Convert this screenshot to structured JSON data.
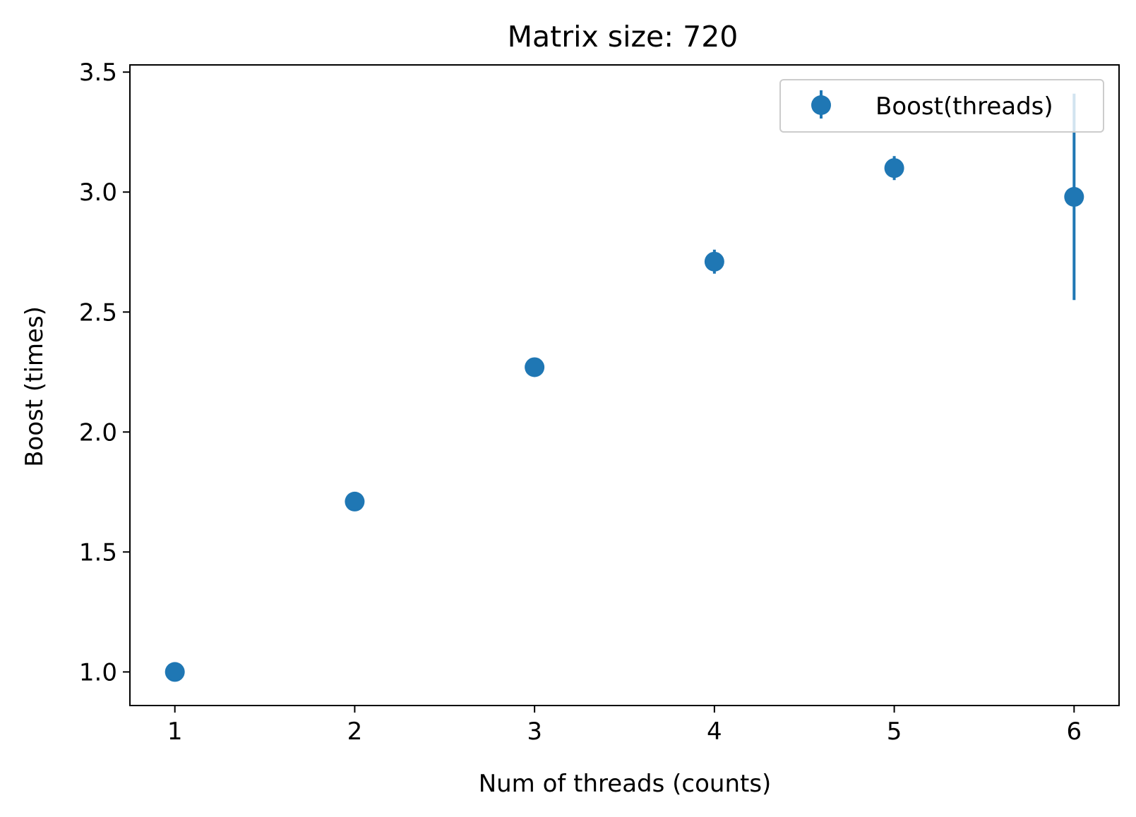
{
  "chart_data": {
    "type": "scatter",
    "title": "Matrix size: 720",
    "xlabel": "Num of threads (counts)",
    "ylabel": "Boost (times)",
    "xlim": [
      0.75,
      6.25
    ],
    "ylim": [
      0.86,
      3.53
    ],
    "xticks": [
      1,
      2,
      3,
      4,
      5,
      6
    ],
    "xtick_labels": [
      "1",
      "2",
      "3",
      "4",
      "5",
      "6"
    ],
    "yticks": [
      1.0,
      1.5,
      2.0,
      2.5,
      3.0,
      3.5
    ],
    "ytick_labels": [
      "1.0",
      "1.5",
      "2.0",
      "2.5",
      "3.0",
      "3.5"
    ],
    "grid": false,
    "legend_position": "top-right",
    "series": [
      {
        "name": "Boost(threads)",
        "color": "#1f77b4",
        "x": [
          1,
          2,
          3,
          4,
          5,
          6
        ],
        "y": [
          1.0,
          1.71,
          2.27,
          2.71,
          3.1,
          2.98
        ],
        "yerr": [
          0.0,
          0.0,
          0.0,
          0.05,
          0.05,
          0.43
        ]
      }
    ]
  }
}
